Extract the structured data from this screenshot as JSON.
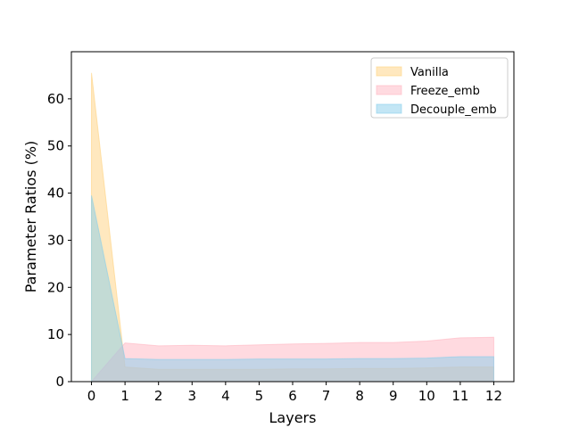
{
  "chart_data": {
    "type": "area",
    "title": "",
    "xlabel": "Layers",
    "ylabel": "Parameter Ratios (%)",
    "x": [
      0,
      1,
      2,
      3,
      4,
      5,
      6,
      7,
      8,
      9,
      10,
      11,
      12
    ],
    "xlim": [
      -0.6,
      12.6
    ],
    "ylim": [
      0,
      70
    ],
    "xticks": [
      "0",
      "1",
      "2",
      "3",
      "4",
      "5",
      "6",
      "7",
      "8",
      "9",
      "10",
      "11",
      "12"
    ],
    "yticks": [
      "0",
      "10",
      "20",
      "30",
      "40",
      "50",
      "60"
    ],
    "grid": false,
    "legend_position": "top-right",
    "series": [
      {
        "name": "Vanilla",
        "color": "#FFD27F",
        "values": [
          65.5,
          3.1,
          2.6,
          2.6,
          2.6,
          2.6,
          2.7,
          2.7,
          2.8,
          2.8,
          2.9,
          3.1,
          3.1
        ]
      },
      {
        "name": "Freeze_emb",
        "color": "#FFB6C1",
        "values": [
          0.0,
          8.2,
          7.6,
          7.7,
          7.6,
          7.8,
          8.0,
          8.1,
          8.3,
          8.3,
          8.6,
          9.3,
          9.4
        ]
      },
      {
        "name": "Decouple_emb",
        "color": "#87CEEB",
        "values": [
          39.5,
          4.9,
          4.7,
          4.7,
          4.7,
          4.8,
          4.8,
          4.8,
          4.9,
          4.9,
          5.0,
          5.3,
          5.3
        ]
      }
    ]
  }
}
